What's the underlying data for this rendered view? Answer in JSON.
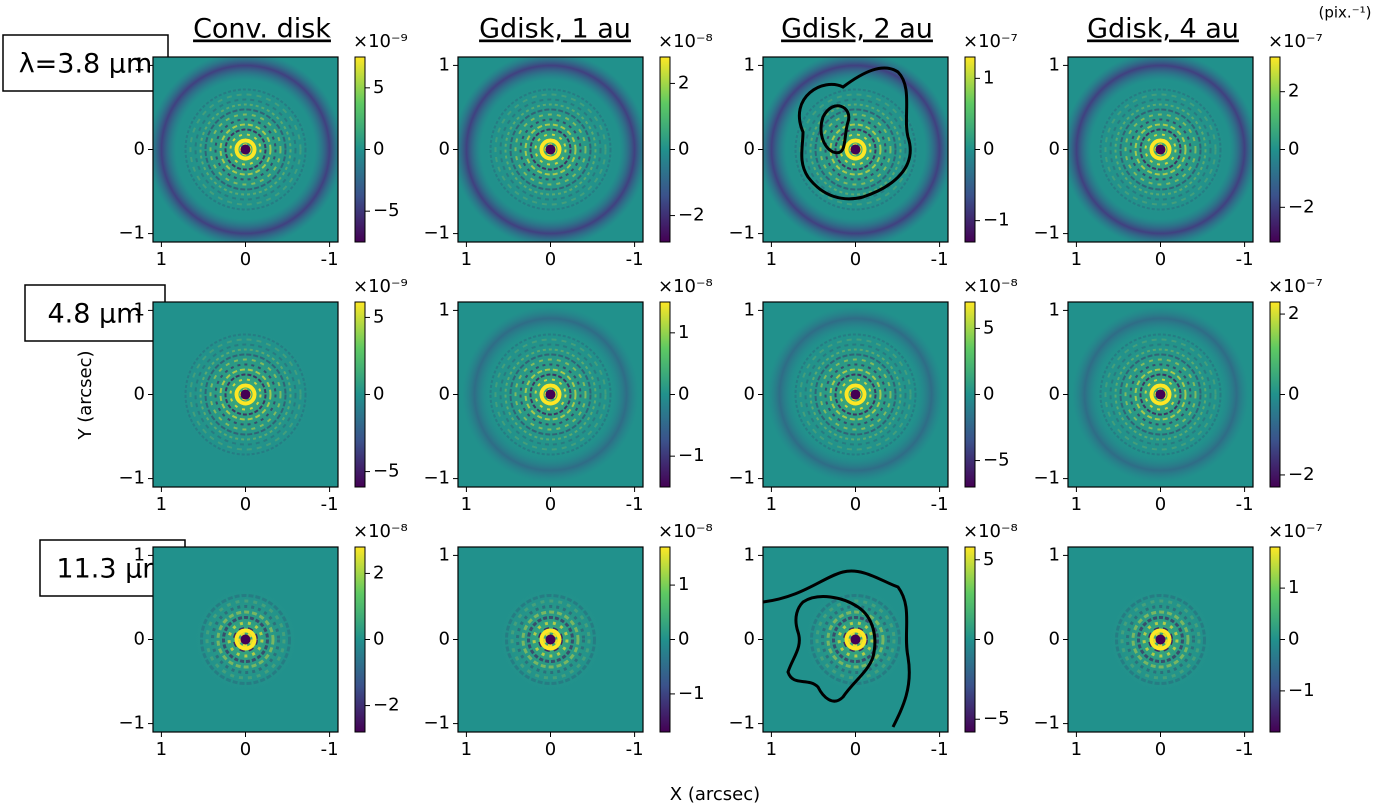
{
  "column_titles": [
    "Conv. disk",
    "Gdisk, 1 au",
    "Gdisk, 2 au",
    "Gdisk, 4 au"
  ],
  "row_labels": [
    "λ=3.8 μm",
    "4.8 μm",
    "11.3 μm"
  ],
  "xlabel": "X (arcsec)",
  "ylabel": "Y (arcsec)",
  "colorbar_unit": "(pix.⁻¹)",
  "chart_data": [
    {
      "type": "image",
      "xlim": [
        1.1,
        -1.1
      ],
      "ylim": [
        -1.1,
        1.1
      ],
      "xticks": [
        1,
        0,
        -1
      ],
      "yticks": [
        {
          "value": -1,
          "label": "−1"
        },
        0,
        1
      ],
      "clim": [
        -7.5,
        7.5
      ],
      "cticks": [
        {
          "value": -5,
          "label": "−5"
        },
        0,
        5
      ],
      "cscale": "×10⁻⁹"
    },
    {
      "type": "image",
      "xlim": [
        1.1,
        -1.1
      ],
      "ylim": [
        -1.1,
        1.1
      ],
      "xticks": [
        1,
        0,
        -1
      ],
      "yticks": [
        {
          "value": -1,
          "label": "−1"
        },
        0,
        1
      ],
      "clim": [
        -2.8,
        2.8
      ],
      "cticks": [
        {
          "value": -2,
          "label": "−2"
        },
        0,
        2
      ],
      "cscale": "×10⁻⁸"
    },
    {
      "type": "image",
      "xlim": [
        1.1,
        -1.1
      ],
      "ylim": [
        -1.1,
        1.1
      ],
      "xticks": [
        1,
        0,
        -1
      ],
      "yticks": [
        {
          "value": -1,
          "label": "−1"
        },
        0,
        1
      ],
      "clim": [
        -1.3,
        1.3
      ],
      "cticks": [
        {
          "value": -1,
          "label": "−1"
        },
        0,
        1
      ],
      "cscale": "×10⁻⁷"
    },
    {
      "type": "image",
      "xlim": [
        1.1,
        -1.1
      ],
      "ylim": [
        -1.1,
        1.1
      ],
      "xticks": [
        1,
        0,
        -1
      ],
      "yticks": [
        {
          "value": -1,
          "label": "−1"
        },
        0,
        1
      ],
      "clim": [
        -3.2,
        3.2
      ],
      "cticks": [
        {
          "value": -2,
          "label": "−2"
        },
        0,
        2
      ],
      "cscale": "×10⁻⁷"
    },
    {
      "type": "image",
      "xlim": [
        1.1,
        -1.1
      ],
      "ylim": [
        -1.1,
        1.1
      ],
      "xticks": [
        1,
        0,
        -1
      ],
      "yticks": [
        {
          "value": -1,
          "label": "−1"
        },
        0,
        1
      ],
      "clim": [
        -6,
        6
      ],
      "cticks": [
        {
          "value": -5,
          "label": "−5"
        },
        0,
        5
      ],
      "cscale": "×10⁻⁹"
    },
    {
      "type": "image",
      "xlim": [
        1.1,
        -1.1
      ],
      "ylim": [
        -1.1,
        1.1
      ],
      "xticks": [
        1,
        0,
        -1
      ],
      "yticks": [
        {
          "value": -1,
          "label": "−1"
        },
        0,
        1
      ],
      "clim": [
        -1.5,
        1.5
      ],
      "cticks": [
        {
          "value": -1,
          "label": "−1"
        },
        0,
        1
      ],
      "cscale": "×10⁻⁸"
    },
    {
      "type": "image",
      "xlim": [
        1.1,
        -1.1
      ],
      "ylim": [
        -1.1,
        1.1
      ],
      "xticks": [
        1,
        0,
        -1
      ],
      "yticks": [
        {
          "value": -1,
          "label": "−1"
        },
        0,
        1
      ],
      "clim": [
        -7,
        7
      ],
      "cticks": [
        {
          "value": -5,
          "label": "−5"
        },
        0,
        5
      ],
      "cscale": "×10⁻⁸"
    },
    {
      "type": "image",
      "xlim": [
        1.1,
        -1.1
      ],
      "ylim": [
        -1.1,
        1.1
      ],
      "xticks": [
        1,
        0,
        -1
      ],
      "yticks": [
        {
          "value": -1,
          "label": "−1"
        },
        0,
        1
      ],
      "clim": [
        -2.3,
        2.3
      ],
      "cticks": [
        {
          "value": -2,
          "label": "−2"
        },
        0,
        2
      ],
      "cscale": "×10⁻⁷"
    },
    {
      "type": "image",
      "xlim": [
        1.1,
        -1.1
      ],
      "ylim": [
        -1.1,
        1.1
      ],
      "xticks": [
        1,
        0,
        -1
      ],
      "yticks": [
        {
          "value": -1,
          "label": "−1"
        },
        0,
        1
      ],
      "clim": [
        -2.8,
        2.8
      ],
      "cticks": [
        {
          "value": -2,
          "label": "−2"
        },
        0,
        2
      ],
      "cscale": "×10⁻⁸"
    },
    {
      "type": "image",
      "xlim": [
        1.1,
        -1.1
      ],
      "ylim": [
        -1.1,
        1.1
      ],
      "xticks": [
        1,
        0,
        -1
      ],
      "yticks": [
        {
          "value": -1,
          "label": "−1"
        },
        0,
        1
      ],
      "clim": [
        -1.7,
        1.7
      ],
      "cticks": [
        {
          "value": -1,
          "label": "−1"
        },
        0,
        1
      ],
      "cscale": "×10⁻⁸"
    },
    {
      "type": "image",
      "xlim": [
        1.1,
        -1.1
      ],
      "ylim": [
        -1.1,
        1.1
      ],
      "xticks": [
        1,
        0,
        -1
      ],
      "yticks": [
        {
          "value": -1,
          "label": "−1"
        },
        0,
        1
      ],
      "clim": [
        -5.8,
        5.8
      ],
      "cticks": [
        {
          "value": -5,
          "label": "−5"
        },
        0,
        5
      ],
      "cscale": "×10⁻⁸"
    },
    {
      "type": "image",
      "xlim": [
        1.1,
        -1.1
      ],
      "ylim": [
        -1.1,
        1.1
      ],
      "xticks": [
        1,
        0,
        -1
      ],
      "yticks": [
        {
          "value": -1,
          "label": "−1"
        },
        0,
        1
      ],
      "clim": [
        -1.8,
        1.8
      ],
      "cticks": [
        {
          "value": -1,
          "label": "−1"
        },
        0,
        1
      ],
      "cscale": "×10⁻⁷"
    }
  ]
}
